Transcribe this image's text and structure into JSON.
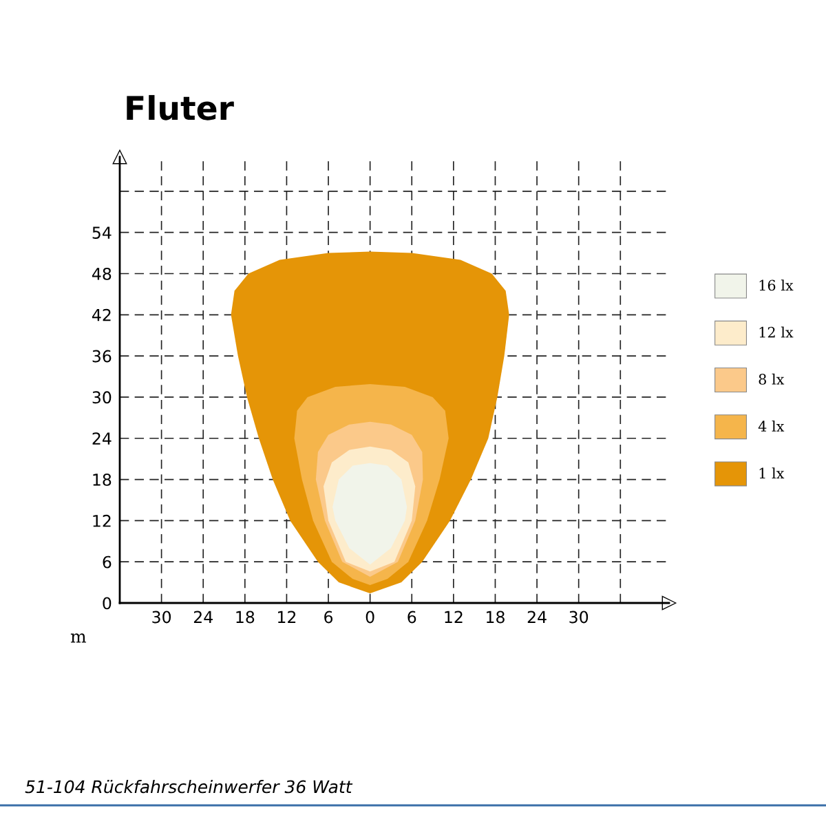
{
  "chart_data": {
    "type": "area",
    "title": "Fluter",
    "xlim": [
      -36,
      43
    ],
    "ylim": [
      0,
      65
    ],
    "xticks": [
      {
        "value": -30,
        "label": "30"
      },
      {
        "value": -24,
        "label": "24"
      },
      {
        "value": -18,
        "label": "18"
      },
      {
        "value": -12,
        "label": "12"
      },
      {
        "value": -6,
        "label": "6"
      },
      0,
      6,
      12,
      18,
      24,
      30,
      {
        "value": 36,
        "label": null
      }
    ],
    "yticks": [
      0,
      6,
      12,
      18,
      24,
      30,
      36,
      42,
      48,
      54,
      {
        "value": 60,
        "label": null
      }
    ],
    "grid": true,
    "legend": "right",
    "annotations": [
      "m",
      "51-104 Rückfahrscheinwerfer 36 Watt"
    ],
    "series": [
      {
        "name": "1 lx",
        "color": "#e59507",
        "x": [
          0,
          -4.5,
          -7.5,
          -11.5,
          -14,
          -16,
          -17.7,
          -19,
          -20,
          -19.5,
          -17.5,
          -13,
          -6,
          0,
          6,
          13,
          17.5,
          19.5,
          20,
          19.3,
          18.3,
          17,
          14.5,
          11.5,
          7.5,
          4.5
        ],
        "values": [
          1.4,
          3,
          6,
          12,
          18,
          24,
          30,
          36,
          42,
          45.5,
          48,
          50,
          51,
          51.2,
          51,
          50,
          48,
          45.5,
          42,
          36,
          30,
          24,
          18,
          12,
          6,
          3
        ]
      },
      {
        "name": "4 lx",
        "color": "#f5b54b",
        "x": [
          0,
          -2.5,
          -5.5,
          -8.2,
          -9.8,
          -10.9,
          -10.5,
          -9,
          -5,
          0,
          5,
          9,
          10.8,
          11.3,
          10,
          8.2,
          5.5,
          2.5
        ],
        "values": [
          2.6,
          3.5,
          6,
          12,
          18,
          24,
          28,
          30,
          31.5,
          31.9,
          31.5,
          30,
          28,
          24,
          18,
          12,
          6,
          3.5
        ]
      },
      {
        "name": "8 lx",
        "color": "#fbc98a",
        "x": [
          0,
          -4,
          -6.5,
          -7.8,
          -7.5,
          -6,
          -3,
          0,
          3,
          6,
          7.5,
          7.6,
          6.5,
          4
        ],
        "values": [
          3.8,
          6,
          12,
          18,
          22,
          24.5,
          26,
          26.4,
          26,
          24.5,
          22,
          18,
          12,
          6
        ]
      },
      {
        "name": "12 lx",
        "color": "#fdeccb",
        "x": [
          0,
          -3.5,
          -6,
          -6.7,
          -5.5,
          -3,
          0,
          3,
          5.5,
          6.5,
          6,
          3.5
        ],
        "values": [
          4.6,
          6,
          12,
          17,
          20.5,
          22.3,
          22.8,
          22.3,
          20.5,
          17,
          12,
          6
        ]
      },
      {
        "name": "16 lx",
        "color": "#f1f4ea",
        "x": [
          0,
          -3,
          -5,
          -5.4,
          -4.5,
          -2.5,
          0,
          2.5,
          4.5,
          5.3,
          5,
          3
        ],
        "values": [
          5.6,
          8,
          12,
          14,
          18,
          20,
          20.4,
          20,
          18,
          14,
          12,
          8
        ]
      }
    ]
  }
}
